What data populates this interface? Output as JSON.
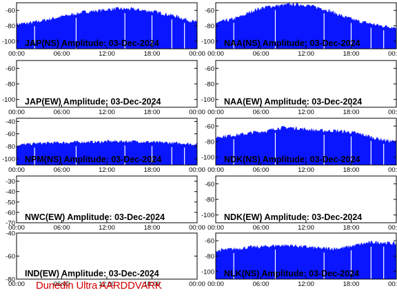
{
  "colors": {
    "fill": "#0a16ff",
    "axis": "#000000",
    "footer": "#d40000"
  },
  "footer_text": "Dunedin Ultra AARDDVARK",
  "chart_data": [
    {
      "type": "area",
      "title": "JAP(NS) Amplitude: 03-Dec-2024",
      "ylim": [
        -110,
        -50
      ],
      "yticks": [
        -60,
        -80,
        -100
      ],
      "xticks": [
        "00:00",
        "06:00",
        "12:00",
        "18:00",
        "00:00"
      ],
      "x_hours": [
        0,
        1,
        2,
        3,
        4,
        5,
        6,
        7,
        8,
        9,
        10,
        11,
        12,
        13,
        14,
        15,
        16,
        17,
        18,
        19,
        20,
        21,
        22,
        23,
        24
      ],
      "y_values": [
        -78,
        -77,
        -76,
        -74,
        -72,
        -70,
        -68,
        -66,
        -64,
        -62,
        -61,
        -60,
        -59,
        -58,
        -58,
        -58,
        -59,
        -60,
        -61,
        -63,
        -65,
        -67,
        -70,
        -73,
        -76
      ]
    },
    {
      "type": "area",
      "title": "NAA(NS) Amplitude: 03-Dec-2024",
      "ylim": [
        -110,
        -50
      ],
      "yticks": [
        -60,
        -80,
        -100
      ],
      "xticks": [
        "00:00",
        "06:00",
        "12:00",
        "18:00",
        "00:00"
      ],
      "x_hours": [
        0,
        1,
        2,
        3,
        4,
        5,
        6,
        7,
        8,
        9,
        10,
        11,
        12,
        13,
        14,
        15,
        16,
        17,
        18,
        19,
        20,
        21,
        22,
        23,
        24
      ],
      "y_values": [
        -76,
        -74,
        -72,
        -69,
        -65,
        -60,
        -57,
        -55,
        -54,
        -53,
        -52,
        -52,
        -53,
        -55,
        -57,
        -60,
        -64,
        -68,
        -71,
        -74,
        -76,
        -78,
        -80,
        -81,
        -82
      ]
    },
    {
      "type": "area",
      "title": "JAP(EW) Amplitude: 03-Dec-2024",
      "ylim": [
        -110,
        -50
      ],
      "yticks": [
        -60,
        -80,
        -100
      ],
      "xticks": [
        "00:00",
        "06:00",
        "12:00",
        "18:00",
        "00:00"
      ],
      "x_hours": [],
      "y_values": []
    },
    {
      "type": "area",
      "title": "NAA(EW) Amplitude: 03-Dec-2024",
      "ylim": [
        -110,
        -50
      ],
      "yticks": [
        -60,
        -80,
        -100
      ],
      "xticks": [
        "00:00",
        "06:00",
        "12:00",
        "18:00",
        "00:00"
      ],
      "x_hours": [],
      "y_values": []
    },
    {
      "type": "area",
      "title": "NPM(NS) Amplitude: 03-Dec-2024",
      "ylim": [
        -110,
        -35
      ],
      "yticks": [
        -40,
        -60,
        -80,
        -100
      ],
      "xticks": [
        "00:00",
        "06:00",
        "12:00",
        "18:00",
        "00:00"
      ],
      "x_hours": [
        0,
        1,
        2,
        3,
        4,
        5,
        6,
        7,
        8,
        9,
        10,
        11,
        12,
        13,
        14,
        15,
        16,
        17,
        18,
        19,
        20,
        21,
        22,
        23,
        24
      ],
      "y_values": [
        -78,
        -77,
        -76,
        -75,
        -75,
        -74,
        -74,
        -74,
        -73,
        -73,
        -73,
        -73,
        -72,
        -72,
        -72,
        -72,
        -72,
        -73,
        -73,
        -74,
        -74,
        -75,
        -75,
        -76,
        -77
      ]
    },
    {
      "type": "area",
      "title": "NDK(NS) Amplitude: 03-Dec-2024",
      "ylim": [
        -110,
        -50
      ],
      "yticks": [
        -60,
        -80,
        -100
      ],
      "xticks": [
        "00:00",
        "06:00",
        "12:00",
        "18:00",
        "00:00"
      ],
      "x_hours": [
        0,
        1,
        2,
        3,
        4,
        5,
        6,
        7,
        8,
        9,
        10,
        11,
        12,
        13,
        14,
        15,
        16,
        17,
        18,
        19,
        20,
        21,
        22,
        23,
        24
      ],
      "y_values": [
        -74,
        -73,
        -72,
        -71,
        -70,
        -68,
        -67,
        -66,
        -63,
        -62,
        -62,
        -63,
        -64,
        -65,
        -66,
        -66,
        -66,
        -67,
        -68,
        -70,
        -72,
        -75,
        -77,
        -79,
        -80
      ]
    },
    {
      "type": "area",
      "title": "NWC(EW) Amplitude: 03-Dec-2024",
      "ylim": [
        -70,
        -25
      ],
      "yticks": [
        -30,
        -40,
        -50,
        -60,
        -70
      ],
      "xticks": [
        "00:00",
        "06:00",
        "12:00",
        "18:00",
        "00:00"
      ],
      "x_hours": [],
      "y_values": []
    },
    {
      "type": "area",
      "title": "NDK(EW) Amplitude: 03-Dec-2024",
      "ylim": [
        -110,
        -50
      ],
      "yticks": [
        -60,
        -80,
        -100
      ],
      "xticks": [
        "00:00",
        "06:00",
        "12:00",
        "18:00",
        "00:00"
      ],
      "x_hours": [],
      "y_values": []
    },
    {
      "type": "area",
      "title": "IND(EW) Amplitude: 03-Dec-2024",
      "ylim": [
        -80,
        -40
      ],
      "yticks": [
        -40,
        -60,
        -80
      ],
      "xticks": [
        "00:00",
        "06:00",
        "12:00",
        "18:00",
        "00:00"
      ],
      "x_hours": [],
      "y_values": []
    },
    {
      "type": "area",
      "title": "NLK(NS) Amplitude: 03-Dec-2024",
      "ylim": [
        -110,
        -50
      ],
      "yticks": [
        -60,
        -80,
        -100
      ],
      "xticks": [
        "00:00",
        "06:00",
        "12:00",
        "18:00",
        "00:00"
      ],
      "x_hours": [
        0,
        1,
        2,
        3,
        4,
        5,
        6,
        7,
        8,
        9,
        10,
        11,
        12,
        13,
        14,
        15,
        16,
        17,
        18,
        19,
        20,
        21,
        22,
        23,
        24
      ],
      "y_values": [
        -73,
        -72,
        -71,
        -70,
        -69,
        -68,
        -68,
        -67,
        -66,
        -66,
        -66,
        -67,
        -68,
        -69,
        -70,
        -70,
        -70,
        -69,
        -67,
        -65,
        -63,
        -62,
        -62,
        -63,
        -64
      ]
    }
  ]
}
